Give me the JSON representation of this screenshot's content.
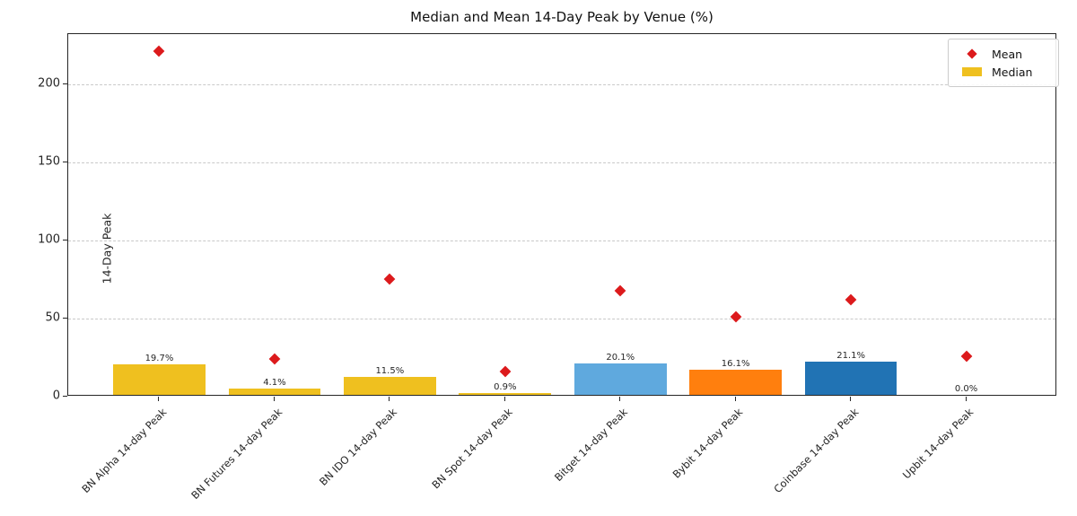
{
  "figure": {
    "title": "Median and Mean 14-Day Peak by Venue (%)"
  },
  "legend": {
    "mean_label": "Mean",
    "median_label": "Median"
  },
  "chart_data": {
    "type": "bar",
    "title": "Median and Mean 14-Day Peak by Venue (%)",
    "xlabel": "",
    "ylabel": "14-Day Peak",
    "ylim": [
      0,
      232
    ],
    "yticks": [
      0,
      50,
      100,
      150,
      200
    ],
    "grid": "horizontal dashed",
    "legend_position": "upper-right",
    "categories": [
      "BN Alpha 14-day Peak",
      "BN Futures 14-day Peak",
      "BN IDO 14-day Peak",
      "BN Spot 14-day Peak",
      "Bitget 14-day Peak",
      "Bybit 14-day Peak",
      "Coinbase 14-day Peak",
      "Upbit 14-day Peak"
    ],
    "series": [
      {
        "name": "Median",
        "type": "bar",
        "values": [
          19.7,
          4.1,
          11.5,
          0.9,
          20.1,
          16.1,
          21.1,
          0.0
        ],
        "value_labels": [
          "19.7%",
          "4.1%",
          "11.5%",
          "0.9%",
          "20.1%",
          "16.1%",
          "21.1%",
          "0.0%"
        ],
        "bar_colors": [
          "#EFC01F",
          "#EFC01F",
          "#EFC01F",
          "#EFC01F",
          "#5FA9DE",
          "#FF7F0E",
          "#2173B4",
          "#EFC01F"
        ]
      },
      {
        "name": "Mean",
        "type": "scatter",
        "marker": "diamond",
        "color": "#DC1A1C",
        "values": [
          221,
          24,
          75,
          16,
          68,
          51,
          62,
          26
        ]
      }
    ],
    "colors": {
      "median_legend_swatch": "#EFC01F",
      "mean_marker": "#DC1A1C"
    }
  }
}
